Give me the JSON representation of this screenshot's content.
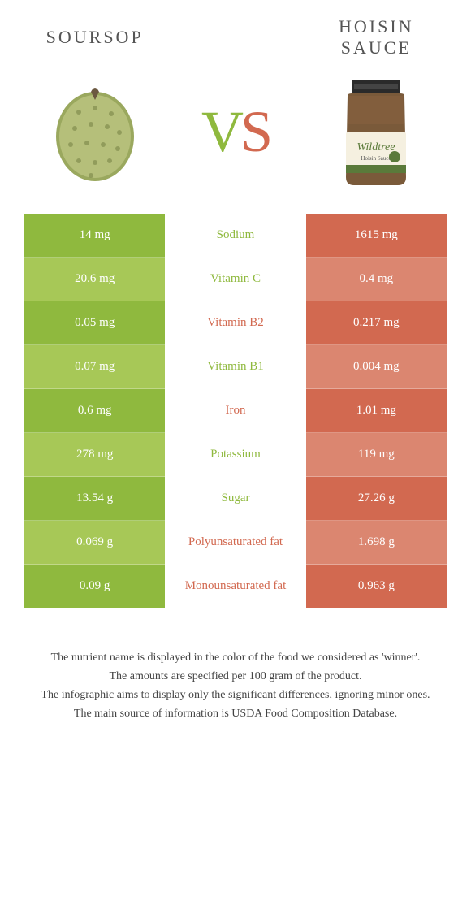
{
  "left": {
    "title": "SOURSOP",
    "color_dark": "#8fb93e",
    "color_light": "#a7c857"
  },
  "right": {
    "title": "HOISIN SAUCE",
    "color_dark": "#d26950",
    "color_light": "#db8670"
  },
  "vs": {
    "v": "V",
    "s": "S"
  },
  "rows": [
    {
      "label": "Sodium",
      "left": "14 mg",
      "right": "1615 mg",
      "winner": "left"
    },
    {
      "label": "Vitamin C",
      "left": "20.6 mg",
      "right": "0.4 mg",
      "winner": "left"
    },
    {
      "label": "Vitamin B2",
      "left": "0.05 mg",
      "right": "0.217 mg",
      "winner": "right"
    },
    {
      "label": "Vitamin B1",
      "left": "0.07 mg",
      "right": "0.004 mg",
      "winner": "left"
    },
    {
      "label": "Iron",
      "left": "0.6 mg",
      "right": "1.01 mg",
      "winner": "right"
    },
    {
      "label": "Potassium",
      "left": "278 mg",
      "right": "119 mg",
      "winner": "left"
    },
    {
      "label": "Sugar",
      "left": "13.54 g",
      "right": "27.26 g",
      "winner": "left"
    },
    {
      "label": "Polyunsaturated fat",
      "left": "0.069 g",
      "right": "1.698 g",
      "winner": "right"
    },
    {
      "label": "Monounsaturated fat",
      "left": "0.09 g",
      "right": "0.963 g",
      "winner": "right"
    }
  ],
  "footer": {
    "line1": "The nutrient name is displayed in the color of the food we considered as 'winner'.",
    "line2": "The amounts are specified per 100 gram of the product.",
    "line3": "The infographic aims to display only the significant differences, ignoring minor ones.",
    "line4": "The main source of information is USDA Food Composition Database."
  }
}
